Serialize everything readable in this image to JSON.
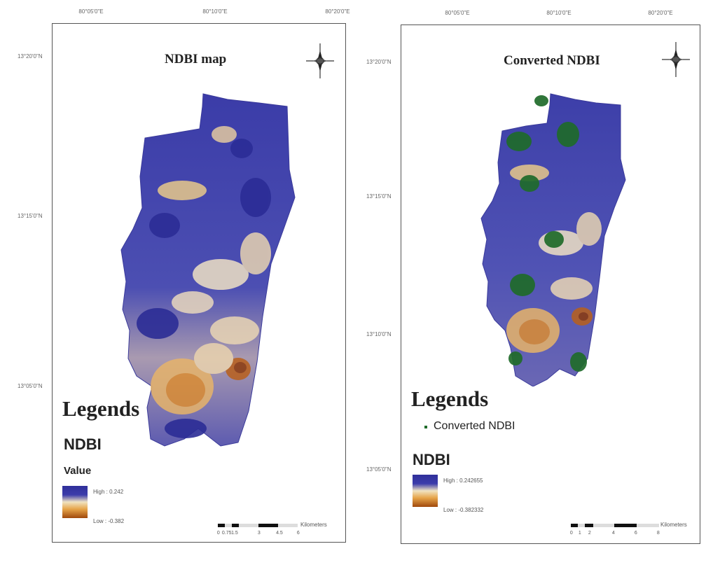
{
  "left_map": {
    "title": "NDBI map",
    "top_ticks": [
      "80°05'0\"E",
      "80°10'0\"E",
      "80°20'0\"E"
    ],
    "left_ticks": [
      "13°20'0\"N",
      "13°15'0\"N",
      "13°05'0\"N"
    ],
    "legend": {
      "heading": "Legends",
      "layer": "NDBI",
      "field": "Value",
      "high": "High : 0.242",
      "low": "Low : -0.382"
    },
    "scale": {
      "labels": [
        "0",
        "0.75",
        "1.5",
        "3",
        "4.5",
        "6"
      ],
      "unit": "Kilometers"
    }
  },
  "right_map": {
    "title": "Converted NDBI",
    "top_ticks": [
      "80°05'0\"E",
      "80°10'0\"E",
      "80°20'0\"E"
    ],
    "left_ticks": [
      "13°20'0\"N",
      "13°15'0\"N",
      "13°10'0\"N",
      "13°05'0\"N"
    ],
    "legend": {
      "heading": "Legends",
      "item": "Converted NDBI",
      "layer": "NDBI",
      "high": "High : 0.242655",
      "low": "Low : -0.382332"
    },
    "scale": {
      "labels": [
        "0",
        "1",
        "2",
        "4",
        "6",
        "8"
      ],
      "unit": "Kilometers"
    }
  },
  "colors": {
    "high": "#2f2f9a",
    "mid": "#f0e3c2",
    "low": "#a0480c",
    "converted": "#1f6b2a",
    "frame": "#555555"
  },
  "icons": [
    "north-arrow-icon",
    "north-arrow-icon"
  ]
}
